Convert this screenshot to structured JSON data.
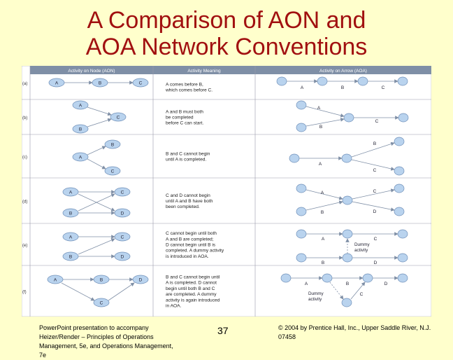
{
  "slide": {
    "title_line1": "A Comparison of AON and",
    "title_line2": "AOA Network Conventions",
    "footer_left": "PowerPoint presentation to accompany Heizer/Render – Principles of Operations Management, 5e, and Operations Management, 7e",
    "page_number": "37",
    "footer_right": "© 2004 by Prentice Hall, Inc., Upper Saddle River, N.J. 07458"
  },
  "table": {
    "headers": [
      "Activity on Node (AON)",
      "Activity Meaning",
      "Activity on Arrow (AOA)"
    ],
    "rows": [
      {
        "label": "(a)",
        "meaning": [
          "A comes before B,",
          "which comes before C."
        ]
      },
      {
        "label": "(b)",
        "meaning": [
          "A and B must both",
          "be completed",
          "before C can start."
        ]
      },
      {
        "label": "(c)",
        "meaning": [
          "B and C cannot begin",
          "until A is completed."
        ]
      },
      {
        "label": "(d)",
        "meaning": [
          "C and D cannot begin",
          "until A and B have both",
          "been completed."
        ]
      },
      {
        "label": "(e)",
        "meaning": [
          "C cannot begin until both",
          "A and B are completed;",
          "D cannot begin until B is",
          "completed. A dummy activity",
          "is introduced in AOA."
        ]
      },
      {
        "label": "(f)",
        "meaning": [
          "B and C cannot begin until",
          "A is completed. D cannot",
          "begin until both B and C",
          "are completed. A dummy",
          "activity is again introduced",
          "in AOA."
        ]
      }
    ]
  },
  "node_labels": [
    "A",
    "B",
    "C",
    "D"
  ],
  "dummy_label_e": [
    "Dummy",
    "activity"
  ],
  "dummy_label_f": [
    "Dummy",
    "activity"
  ],
  "colors": {
    "background": "#ffffcc",
    "title": "#a11010",
    "header": "#7f8fa6",
    "node": "#b9d3ee",
    "node_stroke": "#6f8fb8",
    "arrow": "#7f8fa6"
  }
}
